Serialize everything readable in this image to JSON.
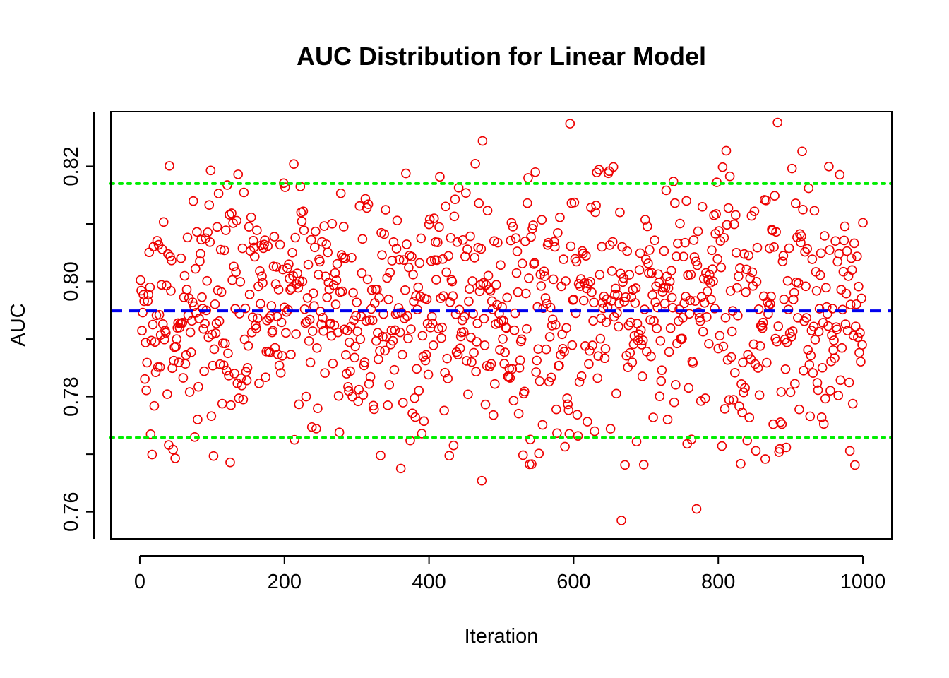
{
  "chart_data": {
    "type": "scatter",
    "title": "AUC Distribution for Linear Model",
    "xlabel": "Iteration",
    "ylabel": "AUC",
    "xlim": [
      -40,
      1040
    ],
    "ylim": [
      0.7553,
      0.8295
    ],
    "x_ticks": [
      0,
      200,
      400,
      600,
      800,
      1000
    ],
    "x_tick_labels": [
      "0",
      "200",
      "400",
      "600",
      "800",
      "1000"
    ],
    "y_ticks": [
      0.76,
      0.78,
      0.8,
      0.82
    ],
    "y_tick_labels": [
      "0.76",
      "0.78",
      "0.80",
      "0.82"
    ],
    "grid": false,
    "legend": "none",
    "point_count": 1000,
    "reference_lines": [
      {
        "role": "mean",
        "y": 0.7949,
        "color": "#0000ee",
        "style": "dashed"
      },
      {
        "role": "lower-bound",
        "y": 0.7729,
        "color": "#00ee00",
        "style": "dotted"
      },
      {
        "role": "upper-bound",
        "y": 0.817,
        "color": "#00ee00",
        "style": "dotted"
      }
    ],
    "point_color": "#ee0000",
    "notable_points": [
      {
        "x": 595,
        "y": 0.8274
      },
      {
        "x": 882,
        "y": 0.8276
      },
      {
        "x": 474,
        "y": 0.8244
      },
      {
        "x": 666,
        "y": 0.7585
      },
      {
        "x": 770,
        "y": 0.7605
      },
      {
        "x": 473,
        "y": 0.7654
      },
      {
        "x": 213,
        "y": 0.8204
      },
      {
        "x": 811,
        "y": 0.8227
      },
      {
        "x": 916,
        "y": 0.8226
      },
      {
        "x": 136,
        "y": 0.8186
      }
    ]
  }
}
